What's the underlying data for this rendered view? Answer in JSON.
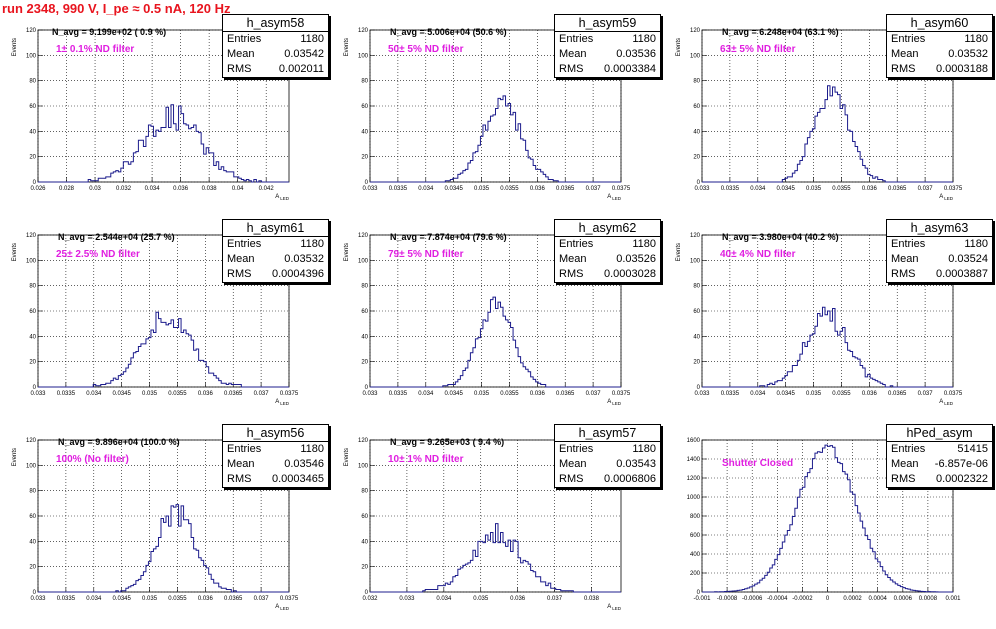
{
  "title": "run 2348,   990 V, I_pe ≈ 0.5 nA, 120 Hz",
  "colors": {
    "title": "#e8141e",
    "hist": "#1c1c8c",
    "filter_text": "#e01ee0",
    "grid": "#000000"
  },
  "chart_data": [
    {
      "type": "histogram",
      "name": "h_asym58",
      "xlabel": "A_LED",
      "ylabel": "Events",
      "n_avg_text": "N_avg = 9.199e+02 ( 0.9 %)",
      "filter_text": "1± 0.1% ND filter",
      "stats": {
        "entries_label": "Entries",
        "entries": "1180",
        "mean_label": "Mean",
        "mean": "0.03542",
        "rms_label": "RMS",
        "rms": "0.002011"
      },
      "xlim": [
        0.026,
        0.0436
      ],
      "ylim": [
        0,
        120
      ],
      "xticks": [
        "0.026",
        "0.028",
        "0.03",
        "0.032",
        "0.034",
        "0.036",
        "0.038",
        "0.04",
        "0.042"
      ],
      "xtick_values": [
        0.026,
        0.028,
        0.03,
        0.032,
        0.034,
        0.036,
        0.038,
        0.04,
        0.042
      ],
      "yticks": [
        "0",
        "20",
        "40",
        "60",
        "80",
        "100",
        "120"
      ],
      "ytick_values": [
        0,
        20,
        40,
        60,
        80,
        100,
        120
      ],
      "mean_value": 0.03542,
      "rms_value": 0.002011,
      "peak": 52,
      "nbins": 100,
      "seed": 58,
      "jitter": 0.22
    },
    {
      "type": "histogram",
      "name": "h_asym59",
      "xlabel": "A_LED",
      "ylabel": "Events",
      "n_avg_text": "N_avg = 5.006e+04 (50.6 %)",
      "filter_text": "50± 5% ND filter",
      "stats": {
        "entries_label": "Entries",
        "entries": "1180",
        "mean_label": "Mean",
        "mean": "0.03536",
        "rms_label": "RMS",
        "rms": "0.0003384"
      },
      "xlim": [
        0.033,
        0.0375
      ],
      "ylim": [
        0,
        120
      ],
      "xticks": [
        "0.033",
        "0.0335",
        "0.034",
        "0.0345",
        "0.035",
        "0.0355",
        "0.036",
        "0.0365",
        "0.037",
        "0.0375"
      ],
      "xtick_values": [
        0.033,
        0.0335,
        0.034,
        0.0345,
        0.035,
        0.0355,
        0.036,
        0.0365,
        0.037,
        0.0375
      ],
      "yticks": [
        "0",
        "20",
        "40",
        "60",
        "80",
        "100",
        "120"
      ],
      "ytick_values": [
        0,
        20,
        40,
        60,
        80,
        100,
        120
      ],
      "mean_value": 0.03536,
      "rms_value": 0.0003384,
      "peak": 64,
      "nbins": 100,
      "seed": 59,
      "jitter": 0.12
    },
    {
      "type": "histogram",
      "name": "h_asym60",
      "xlabel": "A_LED",
      "ylabel": "Events",
      "n_avg_text": "N_avg = 6.248e+04 (63.1 %)",
      "filter_text": "63± 5% ND filter",
      "stats": {
        "entries_label": "Entries",
        "entries": "1180",
        "mean_label": "Mean",
        "mean": "0.03532",
        "rms_label": "RMS",
        "rms": "0.0003188"
      },
      "xlim": [
        0.033,
        0.0375
      ],
      "ylim": [
        0,
        120
      ],
      "xticks": [
        "0.033",
        "0.0335",
        "0.034",
        "0.0345",
        "0.035",
        "0.0355",
        "0.036",
        "0.0365",
        "0.037",
        "0.0375"
      ],
      "xtick_values": [
        0.033,
        0.0335,
        0.034,
        0.0345,
        0.035,
        0.0355,
        0.036,
        0.0365,
        0.037,
        0.0375
      ],
      "yticks": [
        "0",
        "20",
        "40",
        "60",
        "80",
        "100",
        "120"
      ],
      "ytick_values": [
        0,
        20,
        40,
        60,
        80,
        100,
        120
      ],
      "mean_value": 0.03532,
      "rms_value": 0.0003188,
      "peak": 72,
      "nbins": 100,
      "seed": 60,
      "jitter": 0.12
    },
    {
      "type": "histogram",
      "name": "h_asym61",
      "xlabel": "A_LED",
      "ylabel": "Events",
      "n_avg_text": "N_avg = 2.544e+04 (25.7 %)",
      "filter_text": "25± 2.5% ND filter",
      "stats": {
        "entries_label": "Entries",
        "entries": "1180",
        "mean_label": "Mean",
        "mean": "0.03532",
        "rms_label": "RMS",
        "rms": "0.0004396"
      },
      "xlim": [
        0.033,
        0.0375
      ],
      "ylim": [
        0,
        120
      ],
      "xticks": [
        "0.033",
        "0.0335",
        "0.034",
        "0.0345",
        "0.035",
        "0.0355",
        "0.036",
        "0.0365",
        "0.037",
        "0.0375"
      ],
      "xtick_values": [
        0.033,
        0.0335,
        0.034,
        0.0345,
        0.035,
        0.0355,
        0.036,
        0.0365,
        0.037,
        0.0375
      ],
      "yticks": [
        "0",
        "20",
        "40",
        "60",
        "80",
        "100",
        "120"
      ],
      "ytick_values": [
        0,
        20,
        40,
        60,
        80,
        100,
        120
      ],
      "mean_value": 0.03532,
      "rms_value": 0.0004396,
      "peak": 56,
      "nbins": 100,
      "seed": 61,
      "jitter": 0.16
    },
    {
      "type": "histogram",
      "name": "h_asym62",
      "xlabel": "A_LED",
      "ylabel": "Events",
      "n_avg_text": "N_avg = 7.874e+04 (79.6 %)",
      "filter_text": "79± 5% ND filter",
      "stats": {
        "entries_label": "Entries",
        "entries": "1180",
        "mean_label": "Mean",
        "mean": "0.03526",
        "rms_label": "RMS",
        "rms": "0.0003028"
      },
      "xlim": [
        0.033,
        0.0375
      ],
      "ylim": [
        0,
        120
      ],
      "xticks": [
        "0.033",
        "0.0335",
        "0.034",
        "0.0345",
        "0.035",
        "0.0355",
        "0.036",
        "0.0365",
        "0.037",
        "0.0375"
      ],
      "xtick_values": [
        0.033,
        0.0335,
        0.034,
        0.0345,
        0.035,
        0.0355,
        0.036,
        0.0365,
        0.037,
        0.0375
      ],
      "yticks": [
        "0",
        "20",
        "40",
        "60",
        "80",
        "100",
        "120"
      ],
      "ytick_values": [
        0,
        20,
        40,
        60,
        80,
        100,
        120
      ],
      "mean_value": 0.03526,
      "rms_value": 0.0003028,
      "peak": 70,
      "nbins": 100,
      "seed": 62,
      "jitter": 0.12
    },
    {
      "type": "histogram",
      "name": "h_asym63",
      "xlabel": "A_LED",
      "ylabel": "Events",
      "n_avg_text": "N_avg = 3.980e+04 (40.2 %)",
      "filter_text": "40± 4% ND filter",
      "stats": {
        "entries_label": "Entries",
        "entries": "1180",
        "mean_label": "Mean",
        "mean": "0.03524",
        "rms_label": "RMS",
        "rms": "0.0003887"
      },
      "xlim": [
        0.033,
        0.0375
      ],
      "ylim": [
        0,
        120
      ],
      "xticks": [
        "0.033",
        "0.0335",
        "0.034",
        "0.0345",
        "0.035",
        "0.0355",
        "0.036",
        "0.0365",
        "0.037",
        "0.0375"
      ],
      "xtick_values": [
        0.033,
        0.0335,
        0.034,
        0.0345,
        0.035,
        0.0355,
        0.036,
        0.0365,
        0.037,
        0.0375
      ],
      "yticks": [
        "0",
        "20",
        "40",
        "60",
        "80",
        "100",
        "120"
      ],
      "ytick_values": [
        0,
        20,
        40,
        60,
        80,
        100,
        120
      ],
      "mean_value": 0.03524,
      "rms_value": 0.0003887,
      "peak": 56,
      "nbins": 100,
      "seed": 63,
      "jitter": 0.16
    },
    {
      "type": "histogram",
      "name": "h_asym56",
      "xlabel": "A_LED",
      "ylabel": "Events",
      "n_avg_text": "N_avg = 9.896e+04 (100.0 %)",
      "filter_text": "100% (No filter)",
      "stats": {
        "entries_label": "Entries",
        "entries": "1180",
        "mean_label": "Mean",
        "mean": "0.03546",
        "rms_label": "RMS",
        "rms": "0.0003465"
      },
      "xlim": [
        0.033,
        0.0375
      ],
      "ylim": [
        0,
        120
      ],
      "xticks": [
        "0.033",
        "0.0335",
        "0.034",
        "0.0345",
        "0.035",
        "0.0355",
        "0.036",
        "0.0365",
        "0.037",
        "0.0375"
      ],
      "xtick_values": [
        0.033,
        0.0335,
        0.034,
        0.0345,
        0.035,
        0.0355,
        0.036,
        0.0365,
        0.037,
        0.0375
      ],
      "yticks": [
        "0",
        "20",
        "40",
        "60",
        "80",
        "100",
        "120"
      ],
      "ytick_values": [
        0,
        20,
        40,
        60,
        80,
        100,
        120
      ],
      "mean_value": 0.03546,
      "rms_value": 0.0003465,
      "peak": 64,
      "nbins": 100,
      "seed": 56,
      "jitter": 0.16
    },
    {
      "type": "histogram",
      "name": "h_asym57",
      "xlabel": "A_LED",
      "ylabel": "Events",
      "n_avg_text": "N_avg = 9.265e+03 ( 9.4 %)",
      "filter_text": "10± 1% ND filter",
      "stats": {
        "entries_label": "Entries",
        "entries": "1180",
        "mean_label": "Mean",
        "mean": "0.03543",
        "rms_label": "RMS",
        "rms": "0.0006806"
      },
      "xlim": [
        0.032,
        0.0388
      ],
      "ylim": [
        0,
        120
      ],
      "xticks": [
        "0.032",
        "0.033",
        "0.034",
        "0.035",
        "0.036",
        "0.037",
        "0.038"
      ],
      "xtick_values": [
        0.032,
        0.033,
        0.034,
        0.035,
        0.036,
        0.037,
        0.038
      ],
      "yticks": [
        "0",
        "20",
        "40",
        "60",
        "80",
        "100",
        "120"
      ],
      "ytick_values": [
        0,
        20,
        40,
        60,
        80,
        100,
        120
      ],
      "mean_value": 0.03543,
      "rms_value": 0.0006806,
      "peak": 46,
      "nbins": 100,
      "seed": 57,
      "jitter": 0.18
    },
    {
      "type": "histogram",
      "name": "hPed_asym",
      "xlabel": "",
      "ylabel": "",
      "n_avg_text": "",
      "filter_text": "Shutter Closed",
      "stats": {
        "entries_label": "Entries",
        "entries": "51415",
        "mean_label": "Mean",
        "mean": "-6.857e-06",
        "rms_label": "RMS",
        "rms": "0.0002322"
      },
      "xlim": [
        -0.001,
        0.001
      ],
      "ylim": [
        0,
        1600
      ],
      "xticks": [
        "-0.001",
        "-0.0008",
        "-0.0006",
        "-0.0004",
        "-0.0002",
        "0",
        "0.0002",
        "0.0004",
        "0.0006",
        "0.0008",
        "0.001"
      ],
      "xtick_values": [
        -0.001,
        -0.0008,
        -0.0006,
        -0.0004,
        -0.0002,
        0,
        0.0002,
        0.0004,
        0.0006,
        0.0008,
        0.001
      ],
      "yticks": [
        "0",
        "200",
        "400",
        "600",
        "800",
        "1000",
        "1200",
        "1400",
        "1600"
      ],
      "ytick_values": [
        0,
        200,
        400,
        600,
        800,
        1000,
        1200,
        1400,
        1600
      ],
      "mean_value": -6.86e-06,
      "rms_value": 0.0002322,
      "peak": 1540,
      "nbins": 100,
      "seed": 99,
      "jitter": 0.035
    }
  ]
}
